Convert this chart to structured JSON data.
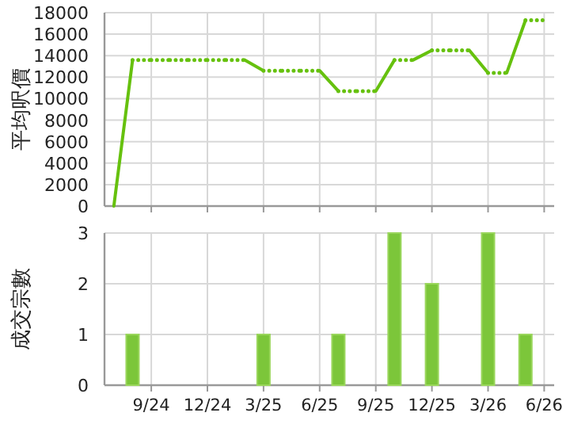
{
  "chart_data": [
    {
      "type": "line",
      "ylabel": "平均呎價",
      "x": [
        "2024-07",
        "2024-08",
        "2024-09",
        "2024-10",
        "2024-11",
        "2024-12",
        "2025-01",
        "2025-02",
        "2025-03",
        "2025-04",
        "2025-05",
        "2025-06",
        "2025-07",
        "2025-08",
        "2025-09",
        "2025-10",
        "2025-11",
        "2025-12",
        "2026-01",
        "2026-02",
        "2026-03",
        "2026-04",
        "2026-05",
        "2026-06"
      ],
      "series": [
        {
          "color": "#66c10e",
          "values": [
            0,
            13600,
            13600,
            13600,
            13600,
            13600,
            13600,
            13600,
            12600,
            12600,
            12600,
            12600,
            10700,
            10700,
            10700,
            13600,
            13600,
            14500,
            14500,
            14500,
            12400,
            12400,
            17300,
            17300
          ]
        }
      ],
      "xlim": [
        "2024-06-16",
        "2026-06-17"
      ],
      "xticks": [
        "2024-09",
        "2024-12",
        "2025-03",
        "2025-06",
        "2025-09",
        "2025-12",
        "2026-03",
        "2026-06"
      ],
      "ylim": [
        0,
        18000
      ],
      "yticks": [
        0,
        2000,
        4000,
        6000,
        8000,
        10000,
        12000,
        14000,
        16000,
        18000
      ],
      "grid": true,
      "tick_labels": "y"
    },
    {
      "type": "bar",
      "ylabel": "成交宗數",
      "x": [
        "2024-08",
        "2025-03",
        "2025-07",
        "2025-10",
        "2025-12",
        "2026-03",
        "2026-05"
      ],
      "series": [
        {
          "color": "#7cc63a",
          "values": [
            1,
            1,
            1,
            3,
            2,
            3,
            1
          ]
        }
      ],
      "xlim": [
        "2024-06-16",
        "2026-06-17"
      ],
      "xticks": [
        {
          "value": "2024-09",
          "label": "9/24"
        },
        {
          "value": "2024-12",
          "label": "12/24"
        },
        {
          "value": "2025-03",
          "label": "3/25"
        },
        {
          "value": "2025-06",
          "label": "6/25"
        },
        {
          "value": "2025-09",
          "label": "9/25"
        },
        {
          "value": "2025-12",
          "label": "12/25"
        },
        {
          "value": "2026-03",
          "label": "3/26"
        },
        {
          "value": "2026-06",
          "label": "6/26"
        }
      ],
      "ylim": [
        0,
        3
      ],
      "yticks": [
        0,
        1,
        2,
        3
      ],
      "grid": true
    }
  ]
}
